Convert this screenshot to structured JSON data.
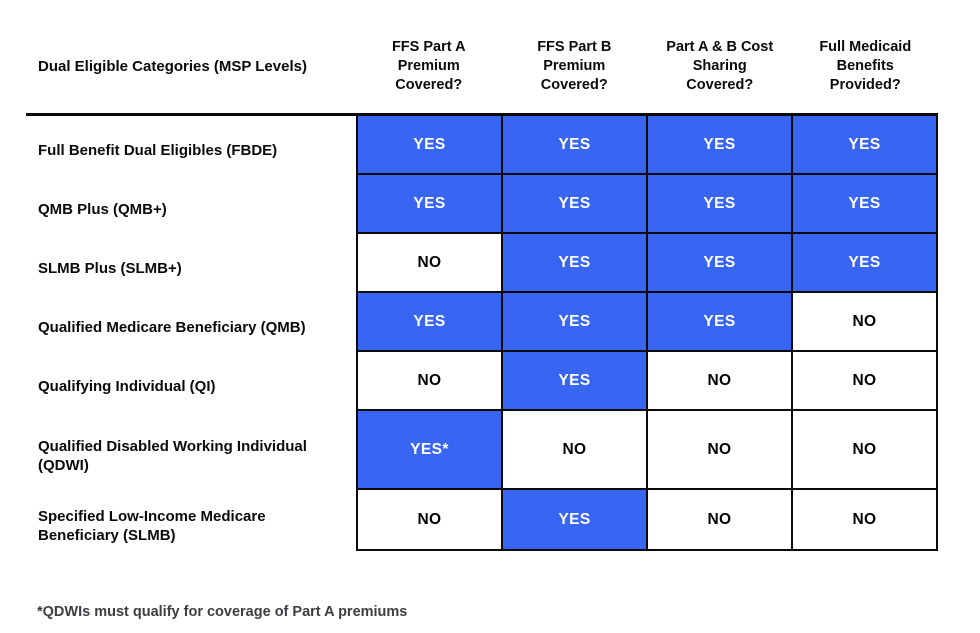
{
  "colors": {
    "cell_yes_bg": "#3866F2",
    "cell_yes_text": "#FFFFFF",
    "cell_no_bg": "#FFFFFF",
    "cell_no_text": "#000000",
    "grid_border": "#0A0A0A"
  },
  "table": {
    "row_header": "Dual Eligible Categories (MSP Levels)",
    "columns": [
      "FFS Part A\nPremium\nCovered?",
      "FFS Part B\nPremium\nCovered?",
      "Part A & B Cost\nSharing\nCovered?",
      "Full Medicaid\nBenefits\nProvided?"
    ],
    "rows": [
      {
        "label": "Full Benefit Dual Eligibles (FBDE)",
        "values": [
          "YES",
          "YES",
          "YES",
          "YES"
        ]
      },
      {
        "label": "QMB Plus (QMB+)",
        "values": [
          "YES",
          "YES",
          "YES",
          "YES"
        ]
      },
      {
        "label": "SLMB Plus (SLMB+)",
        "values": [
          "NO",
          "YES",
          "YES",
          "YES"
        ]
      },
      {
        "label": "Qualified Medicare Beneficiary (QMB)",
        "values": [
          "YES",
          "YES",
          "YES",
          "NO"
        ]
      },
      {
        "label": "Qualifying Individual (QI)",
        "values": [
          "NO",
          "YES",
          "NO",
          "NO"
        ]
      },
      {
        "label": "Qualified Disabled Working Individual (QDWI)",
        "values": [
          "YES*",
          "NO",
          "NO",
          "NO"
        ]
      },
      {
        "label": "Specified Low-Income Medicare Beneficiary (SLMB)",
        "values": [
          "NO",
          "YES",
          "NO",
          "NO"
        ]
      }
    ]
  },
  "footnote": "*QDWIs must qualify for coverage of Part A premiums"
}
